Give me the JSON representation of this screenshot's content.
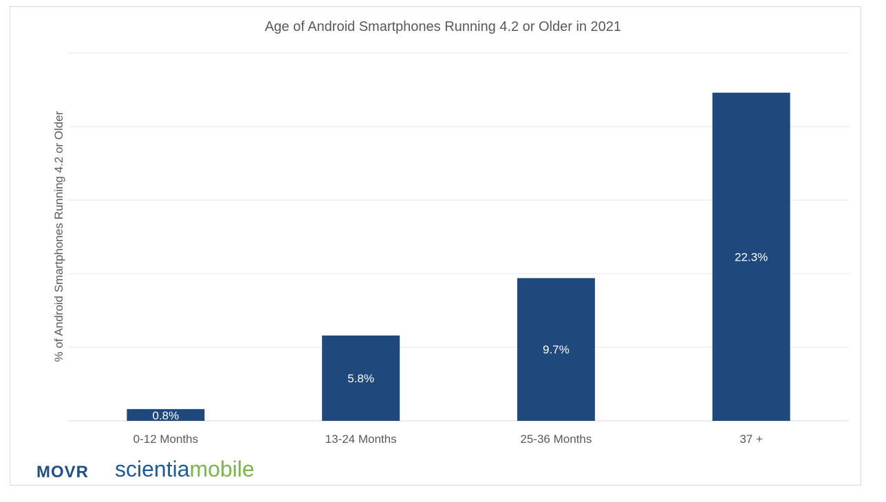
{
  "chart_data": {
    "type": "bar",
    "title": "Age of Android Smartphones Running 4.2 or Older in 2021",
    "xlabel": "",
    "ylabel": "% of Android Smartphones Running 4.2 or Older",
    "categories": [
      "0-12 Months",
      "13-24 Months",
      "25-36 Months",
      "37 +"
    ],
    "values": [
      0.8,
      5.8,
      9.7,
      22.3
    ],
    "data_labels": [
      "0.8%",
      "5.8%",
      "9.7%",
      "22.3%"
    ],
    "ylim": [
      0,
      25
    ],
    "grid": true,
    "bar_color": "#1f497d"
  },
  "logos": {
    "movr": "MOVR",
    "brand_part1": "scientia",
    "brand_part2": "mobile"
  }
}
